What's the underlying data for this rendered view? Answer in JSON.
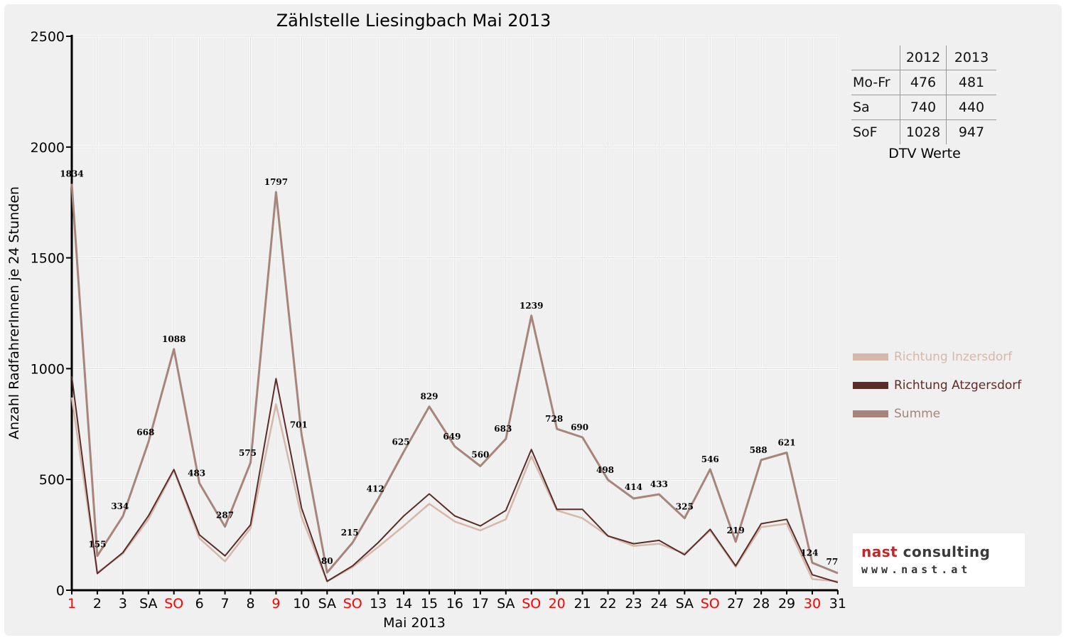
{
  "colors": {
    "inzersdorf": "#d4b8aa",
    "atzgersdorf": "#5a2d28",
    "summe": "#a6857a",
    "holiday": "#ff0000",
    "text": "#000000",
    "grid": "#d8d8d8",
    "logo_red": "#c0282c",
    "logo_gray": "#3a3a3a"
  },
  "chart_data": {
    "type": "line",
    "title": "Zählstelle Liesingbach Mai 2013",
    "xlabel": "Mai 2013",
    "ylabel": "Anzahl RadfahrerInnen je 24 Stunden",
    "ylim": [
      0,
      2500
    ],
    "yticks": [
      "0",
      "500",
      "1000",
      "1500",
      "2000",
      "2500"
    ],
    "grid": true,
    "legend_position": "right",
    "categories": [
      "1",
      "2",
      "3",
      "SA",
      "SO",
      "6",
      "7",
      "8",
      "9",
      "10",
      "SA",
      "SO",
      "13",
      "14",
      "15",
      "16",
      "17",
      "SA",
      "SO",
      "20",
      "21",
      "22",
      "23",
      "24",
      "SA",
      "SO",
      "27",
      "28",
      "29",
      "30",
      "31"
    ],
    "red_categories": [
      0,
      4,
      8,
      11,
      18,
      19,
      25,
      29
    ],
    "series": [
      {
        "name": "Richtung Inzersdorf",
        "key": "inzersdorf",
        "values": [
          870,
          80,
          165,
          320,
          540,
          235,
          130,
          280,
          840,
          330,
          40,
          105,
          195,
          290,
          390,
          310,
          270,
          320,
          605,
          360,
          325,
          245,
          200,
          210,
          165,
          270,
          105,
          285,
          300,
          50,
          40
        ]
      },
      {
        "name": "Richtung Atzgersdorf",
        "key": "atzgersdorf",
        "values": [
          965,
          75,
          170,
          335,
          545,
          250,
          155,
          295,
          955,
          370,
          40,
          110,
          215,
          335,
          435,
          335,
          290,
          360,
          635,
          365,
          365,
          245,
          210,
          225,
          160,
          275,
          110,
          300,
          320,
          70,
          35
        ]
      },
      {
        "name": "Summe",
        "key": "summe",
        "values": [
          1834,
          155,
          334,
          668,
          1088,
          483,
          287,
          575,
          1797,
          701,
          80,
          215,
          412,
          625,
          829,
          649,
          560,
          683,
          1239,
          728,
          690,
          498,
          414,
          433,
          325,
          546,
          219,
          588,
          621,
          124,
          77
        ]
      }
    ],
    "data_labels": [
      "1834",
      "155",
      "334",
      "668",
      "1088",
      "483",
      "287",
      "575",
      "1797",
      "701",
      "80",
      "215",
      "412",
      "625",
      "829",
      "649",
      "560",
      "683",
      "1239",
      "728",
      "690",
      "498",
      "414",
      "433",
      "325",
      "546",
      "219",
      "588",
      "621",
      "124",
      "77"
    ]
  },
  "dtv": {
    "headers": [
      "2012",
      "2013"
    ],
    "rows": [
      {
        "label": "Mo-Fr",
        "v2012": "476",
        "v2013": "481"
      },
      {
        "label": "Sa",
        "v2012": "740",
        "v2013": "440"
      },
      {
        "label": "SoF",
        "v2012": "1028",
        "v2013": "947"
      }
    ],
    "caption": "DTV Werte"
  },
  "logo": {
    "word1": "nast",
    "word2": "consulting",
    "url": "www.nast.at"
  }
}
